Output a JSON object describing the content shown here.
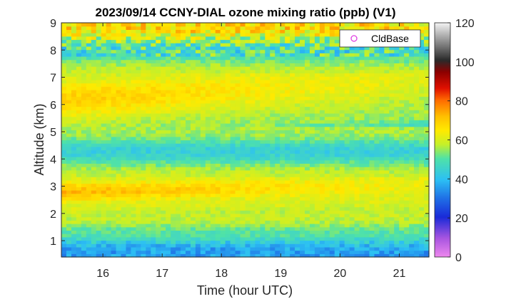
{
  "chart_data": {
    "type": "heatmap",
    "title": "2023/09/14 CCNY-DIAL ozone mixing ratio (ppb) (V1)",
    "xlabel": "Time (hour UTC)",
    "ylabel": "Altitude (km)",
    "xlim": [
      15.3,
      21.5
    ],
    "ylim": [
      0.4,
      9
    ],
    "xticks": [
      "16",
      "17",
      "18",
      "19",
      "20",
      "21"
    ],
    "yticks": [
      "1",
      "2",
      "3",
      "4",
      "5",
      "6",
      "7",
      "8",
      "9"
    ],
    "colorbar": {
      "range": [
        0,
        120
      ],
      "ticks": [
        "0",
        "20",
        "40",
        "60",
        "80",
        "100",
        "120"
      ]
    },
    "legend": {
      "entries": [
        {
          "label": "CldBase",
          "marker": "circle",
          "color": "#e040e0"
        }
      ],
      "placement": "top-right"
    },
    "grid": false,
    "layers": [
      {
        "altitude_km": 0.6,
        "value_ppb": 36
      },
      {
        "altitude_km": 1.3,
        "value_ppb": 50
      },
      {
        "altitude_km": 1.8,
        "value_ppb": 57
      },
      {
        "altitude_km": 2.3,
        "value_ppb": 60
      },
      {
        "altitude_km": 2.8,
        "value_start_ppb": 73,
        "value_end_ppb": 62
      },
      {
        "altitude_km": 3.4,
        "value_ppb": 58
      },
      {
        "altitude_km": 4.3,
        "value_ppb": 44
      },
      {
        "altitude_km": 5.0,
        "value_ppb": 55
      },
      {
        "altitude_km": 6.2,
        "value_start_ppb": 70,
        "value_end_ppb": 60
      },
      {
        "altitude_km": 7.2,
        "value_ppb": 58
      },
      {
        "altitude_km": 8.0,
        "value_ppb": 47
      },
      {
        "altitude_km": 8.8,
        "value_ppb": 66
      }
    ]
  }
}
